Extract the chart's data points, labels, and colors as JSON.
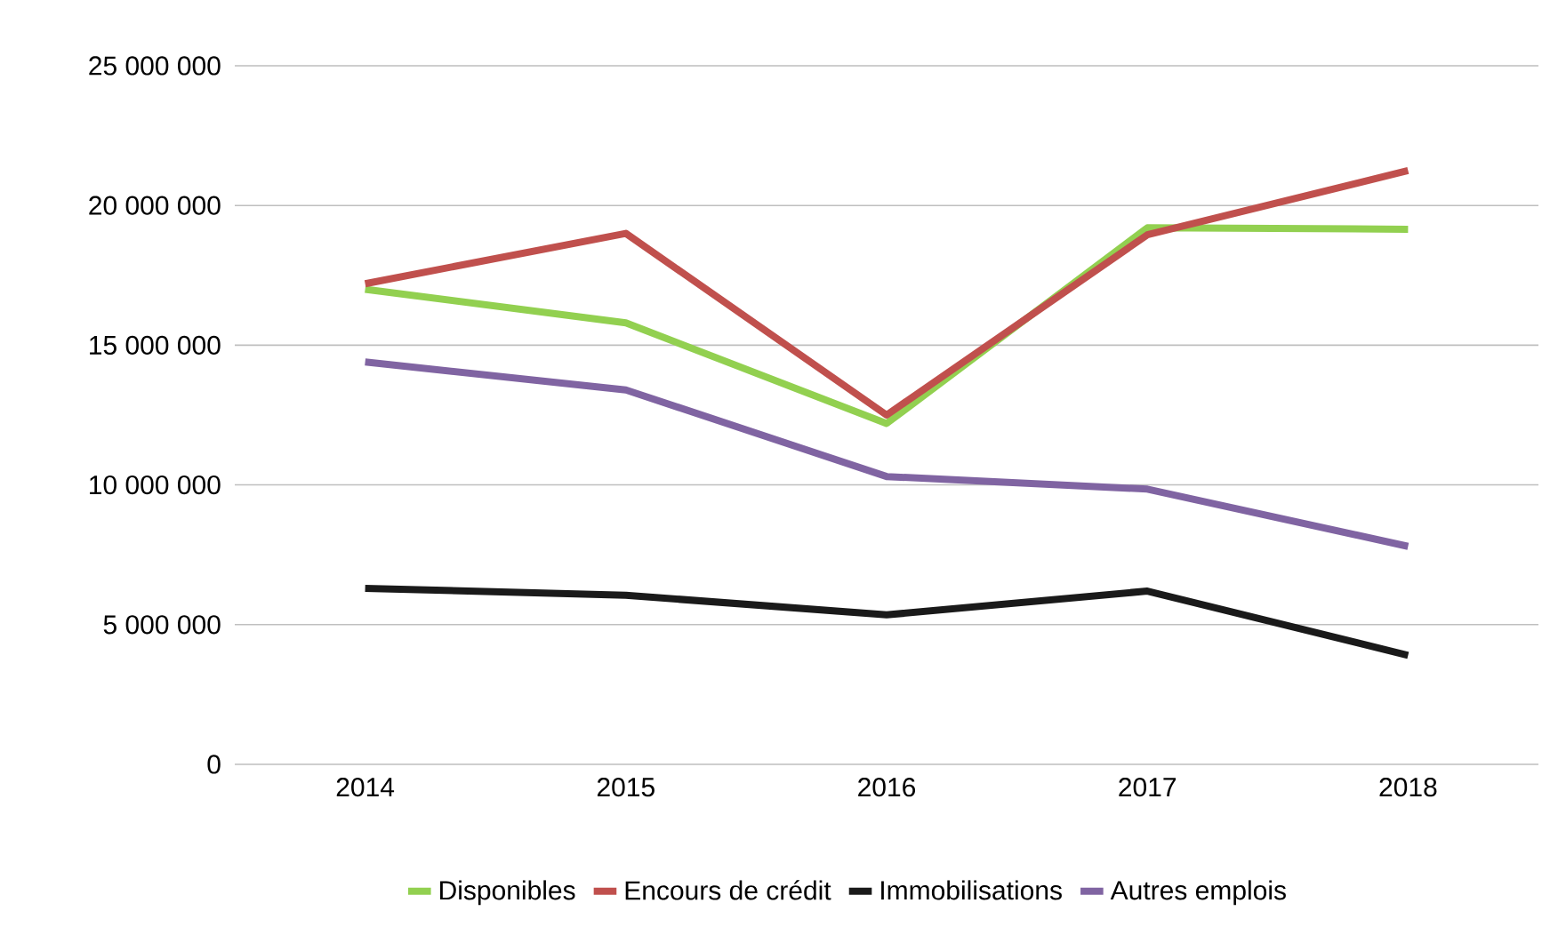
{
  "chart_data": {
    "type": "line",
    "categories": [
      "2014",
      "2015",
      "2016",
      "2017",
      "2018"
    ],
    "series": [
      {
        "name": "Disponibles",
        "color": "#92d050",
        "values": [
          17000000,
          15800000,
          12200000,
          19200000,
          19150000
        ]
      },
      {
        "name": "Encours de crédit",
        "color": "#c0504d",
        "values": [
          17200000,
          19000000,
          12500000,
          18950000,
          21250000
        ]
      },
      {
        "name": "Immobilisations",
        "color": "#1a1a1a",
        "values": [
          6300000,
          6050000,
          5350000,
          6200000,
          3900000
        ]
      },
      {
        "name": "Autres emplois",
        "color": "#8064a2",
        "values": [
          14400000,
          13400000,
          10300000,
          9850000,
          7800000
        ]
      }
    ],
    "ylim": [
      0,
      25000000
    ],
    "yticks": [
      {
        "value": 0,
        "label": "0"
      },
      {
        "value": 5000000,
        "label": "5 000 000"
      },
      {
        "value": 10000000,
        "label": "10 000 000"
      },
      {
        "value": 15000000,
        "label": "15 000 000"
      },
      {
        "value": 20000000,
        "label": "20 000 000"
      },
      {
        "value": 25000000,
        "label": "25 000 000"
      }
    ],
    "grid": "y",
    "legend": "bottom",
    "marker": "none",
    "line_style": "solid"
  }
}
